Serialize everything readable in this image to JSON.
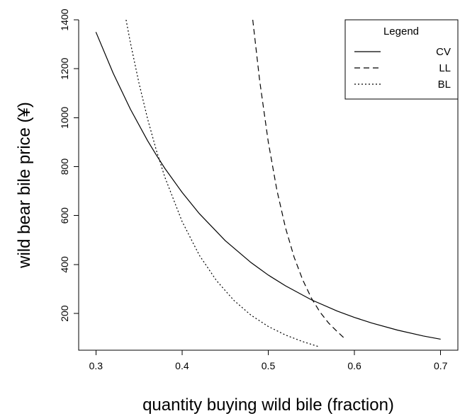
{
  "chart_data": {
    "type": "line",
    "title": "",
    "xlabel": "quantity buying wild bile (fraction)",
    "ylabel": "wild bear bile price (¥)",
    "xlim": [
      0.28,
      0.72
    ],
    "ylim": [
      50,
      1400
    ],
    "x_ticks": [
      0.3,
      0.4,
      0.5,
      0.6,
      0.7
    ],
    "x_tick_labels": [
      "0.3",
      "0.4",
      "0.5",
      "0.6",
      "0.7"
    ],
    "y_ticks": [
      200,
      400,
      600,
      800,
      1000,
      1200,
      1400
    ],
    "y_tick_labels": [
      "200",
      "400",
      "600",
      "800",
      "1000",
      "1200",
      "1400"
    ],
    "grid": false,
    "legend": {
      "title": "Legend",
      "placement": "top-right",
      "entries": [
        {
          "name": "CV",
          "line_style": "solid"
        },
        {
          "name": "LL",
          "line_style": "dashed"
        },
        {
          "name": "BL",
          "line_style": "dotted"
        }
      ]
    },
    "series": [
      {
        "name": "CV",
        "line_style": "solid",
        "color": "#000000",
        "x": [
          0.3,
          0.32,
          0.34,
          0.36,
          0.37,
          0.38,
          0.4,
          0.42,
          0.45,
          0.48,
          0.5,
          0.52,
          0.55,
          0.58,
          0.6,
          0.62,
          0.65,
          0.68,
          0.7
        ],
        "y": [
          1350,
          1182,
          1035,
          906,
          848,
          793,
          695,
          608,
          498,
          408,
          357,
          313,
          256,
          210,
          184,
          161,
          132,
          108,
          95
        ]
      },
      {
        "name": "LL",
        "line_style": "dashed",
        "color": "#000000",
        "x": [
          0.482,
          0.49,
          0.5,
          0.51,
          0.52,
          0.53,
          0.54,
          0.55,
          0.56,
          0.57,
          0.58,
          0.588
        ],
        "y": [
          1400,
          1152,
          901,
          704,
          550,
          430,
          337,
          263,
          206,
          161,
          126,
          100
        ]
      },
      {
        "name": "BL",
        "line_style": "dotted",
        "color": "#000000",
        "x": [
          0.335,
          0.34,
          0.35,
          0.36,
          0.37,
          0.38,
          0.4,
          0.42,
          0.44,
          0.46,
          0.48,
          0.5,
          0.52,
          0.54,
          0.558
        ],
        "y": [
          1400,
          1307,
          1141,
          995,
          868,
          757,
          576,
          438,
          334,
          254,
          193,
          147,
          112,
          85,
          65
        ]
      }
    ]
  }
}
